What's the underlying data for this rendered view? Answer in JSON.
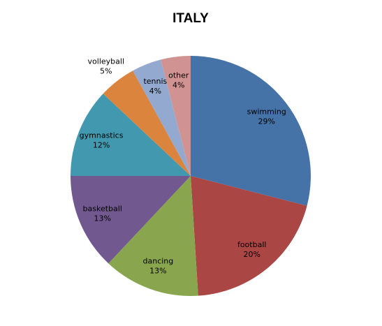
{
  "chart_data": {
    "type": "pie",
    "title": "ITALY",
    "categories": [
      "swimming",
      "football",
      "dancing",
      "basketball",
      "gymnastics",
      "volleyball",
      "tennis",
      "other"
    ],
    "values": [
      29,
      20,
      13,
      13,
      12,
      5,
      4,
      4
    ],
    "value_labels": [
      "29%",
      "20%",
      "13%",
      "13%",
      "12%",
      "5%",
      "4%",
      "4%"
    ],
    "colors": [
      "#4572a7",
      "#aa4643",
      "#89a54e",
      "#71588f",
      "#4198af",
      "#db843d",
      "#93a9cf",
      "#d19392"
    ]
  }
}
